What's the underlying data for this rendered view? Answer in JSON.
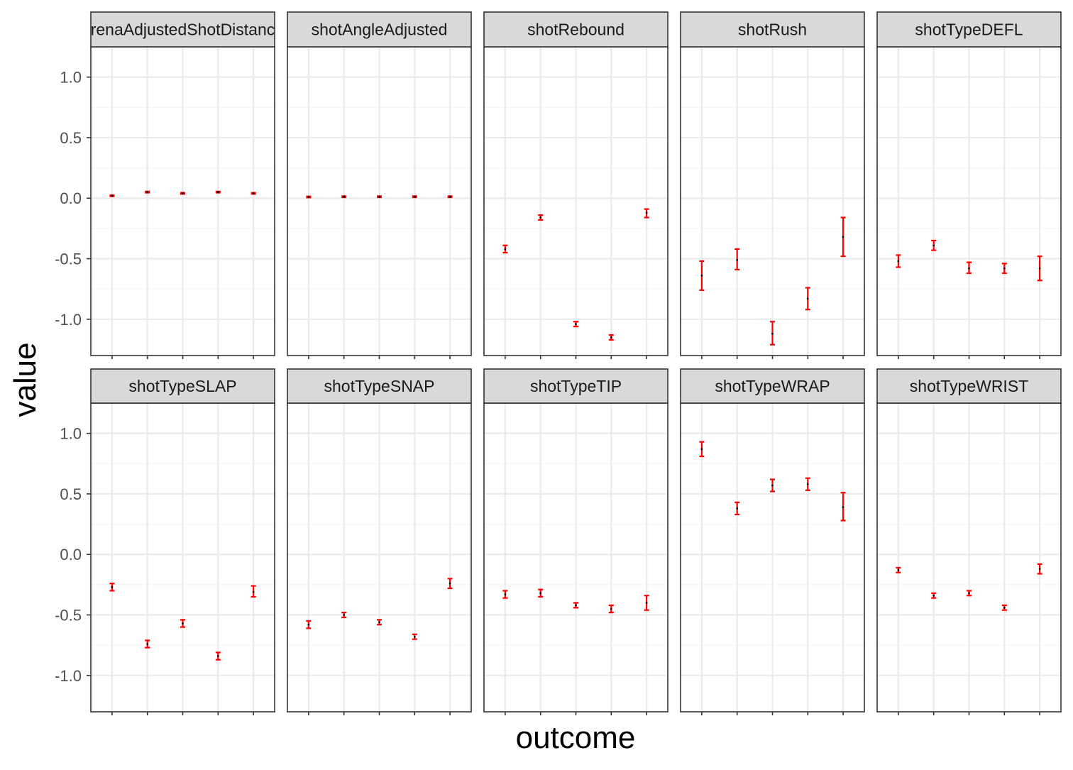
{
  "chart_data": {
    "type": "errorbar",
    "xlabel": "outcome",
    "ylabel": "value",
    "ylim": [
      -1.3,
      1.25
    ],
    "y_ticks": [
      1.0,
      0.5,
      0.0,
      -0.5,
      -1.0
    ],
    "y_tick_labels": [
      "1.0",
      "0.5",
      "0.0",
      "-0.5",
      "-1.0"
    ],
    "x_tick_labels": [],
    "grid": true,
    "facets": 10,
    "facet_columns": 5,
    "colors": {
      "errorbar": "#ff0000",
      "point": "#000000",
      "strip_bg": "#d9d9d9",
      "grid_major": "#ebebeb",
      "grid_minor": "#f5f5f5",
      "border": "#333333"
    },
    "panels": [
      {
        "title": "arenaAdjustedShotDistance",
        "values": [
          0.02,
          0.05,
          0.04,
          0.05,
          0.04
        ],
        "lower": [
          0.015,
          0.045,
          0.035,
          0.045,
          0.035
        ],
        "upper": [
          0.025,
          0.055,
          0.045,
          0.055,
          0.045
        ]
      },
      {
        "title": "shotAngleAdjusted",
        "values": [
          0.01,
          0.012,
          0.012,
          0.012,
          0.012
        ],
        "lower": [
          0.005,
          0.007,
          0.007,
          0.007,
          0.007
        ],
        "upper": [
          0.015,
          0.017,
          0.017,
          0.017,
          0.017
        ]
      },
      {
        "title": "shotRebound",
        "values": [
          -0.42,
          -0.16,
          -1.04,
          -1.15,
          -0.12
        ],
        "lower": [
          -0.45,
          -0.18,
          -1.06,
          -1.17,
          -0.16
        ],
        "upper": [
          -0.39,
          -0.14,
          -1.02,
          -1.13,
          -0.09
        ]
      },
      {
        "title": "shotRush",
        "values": [
          -0.64,
          -0.51,
          -1.12,
          -0.83,
          -0.32
        ],
        "lower": [
          -0.76,
          -0.59,
          -1.21,
          -0.92,
          -0.48
        ],
        "upper": [
          -0.52,
          -0.42,
          -1.02,
          -0.74,
          -0.16
        ]
      },
      {
        "title": "shotTypeDEFL",
        "values": [
          -0.52,
          -0.39,
          -0.58,
          -0.58,
          -0.58
        ],
        "lower": [
          -0.57,
          -0.43,
          -0.62,
          -0.62,
          -0.68
        ],
        "upper": [
          -0.47,
          -0.35,
          -0.53,
          -0.54,
          -0.48
        ]
      },
      {
        "title": "shotTypeSLAP",
        "values": [
          -0.27,
          -0.74,
          -0.57,
          -0.84,
          -0.31
        ],
        "lower": [
          -0.3,
          -0.77,
          -0.6,
          -0.87,
          -0.35
        ],
        "upper": [
          -0.24,
          -0.71,
          -0.54,
          -0.81,
          -0.26
        ]
      },
      {
        "title": "shotTypeSNAP",
        "values": [
          -0.58,
          -0.5,
          -0.56,
          -0.68,
          -0.24
        ],
        "lower": [
          -0.61,
          -0.52,
          -0.58,
          -0.7,
          -0.28
        ],
        "upper": [
          -0.55,
          -0.48,
          -0.54,
          -0.66,
          -0.2
        ]
      },
      {
        "title": "shotTypeTIP",
        "values": [
          -0.33,
          -0.32,
          -0.42,
          -0.45,
          -0.4
        ],
        "lower": [
          -0.36,
          -0.35,
          -0.44,
          -0.48,
          -0.46
        ],
        "upper": [
          -0.3,
          -0.29,
          -0.4,
          -0.42,
          -0.34
        ]
      },
      {
        "title": "shotTypeWRAP",
        "values": [
          0.87,
          0.38,
          0.57,
          0.58,
          0.39
        ],
        "lower": [
          0.81,
          0.33,
          0.52,
          0.53,
          0.28
        ],
        "upper": [
          0.93,
          0.43,
          0.62,
          0.63,
          0.51
        ]
      },
      {
        "title": "shotTypeWRIST",
        "values": [
          -0.13,
          -0.34,
          -0.32,
          -0.44,
          -0.12
        ],
        "lower": [
          -0.15,
          -0.36,
          -0.34,
          -0.46,
          -0.16
        ],
        "upper": [
          -0.11,
          -0.32,
          -0.3,
          -0.42,
          -0.08
        ]
      }
    ]
  }
}
